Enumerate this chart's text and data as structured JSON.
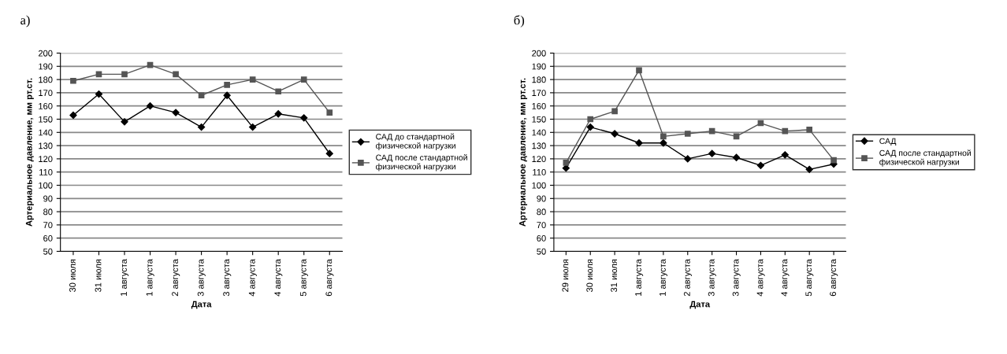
{
  "chart_data": [
    {
      "type": "line",
      "title": "а)",
      "xlabel": "Дата",
      "ylabel": "Артериальное давление, мм рт.ст.",
      "categories": [
        "30 июля",
        "31 июля",
        "1 августа",
        "1 августа",
        "2 августа",
        "3 августа",
        "3 августа",
        "4 августа",
        "4 августа",
        "5 августа",
        "6 августа"
      ],
      "series": [
        {
          "name": "САД до стандартной физической нагрузки",
          "color": "#000000",
          "marker": "diamond",
          "values": [
            153,
            169,
            148,
            160,
            155,
            144,
            168,
            144,
            154,
            151,
            124
          ]
        },
        {
          "name": "САД после стандартной физической нагрузки",
          "color": "#555555",
          "marker": "square",
          "values": [
            179,
            184,
            184,
            191,
            184,
            168,
            176,
            180,
            171,
            180,
            155
          ]
        }
      ],
      "ylim": [
        50,
        200
      ],
      "yticks": [
        50,
        60,
        70,
        80,
        90,
        100,
        110,
        120,
        130,
        140,
        150,
        160,
        170,
        180,
        190,
        200
      ],
      "grid": "y",
      "legend": "right",
      "line_style": "solid"
    },
    {
      "type": "line",
      "title": "б)",
      "xlabel": "Дата",
      "ylabel": "Артериальное давление, мм рт.ст.",
      "categories": [
        "29 июля",
        "30 июля",
        "31 июля",
        "1 августа",
        "1 августа",
        "2 августа",
        "3 августа",
        "3 августа",
        "4 августа",
        "4 августа",
        "5 августа",
        "6 августа"
      ],
      "series": [
        {
          "name": "САД",
          "color": "#000000",
          "marker": "diamond",
          "values": [
            113,
            144,
            139,
            132,
            132,
            120,
            124,
            121,
            115,
            123,
            112,
            116
          ]
        },
        {
          "name": "САД после стандартной физической нагрузки",
          "color": "#555555",
          "marker": "square",
          "values": [
            117,
            150,
            156,
            187,
            137,
            139,
            141,
            137,
            147,
            141,
            142,
            119
          ]
        }
      ],
      "ylim": [
        50,
        200
      ],
      "yticks": [
        50,
        60,
        70,
        80,
        90,
        100,
        110,
        120,
        130,
        140,
        150,
        160,
        170,
        180,
        190,
        200
      ],
      "grid": "y",
      "legend": "right",
      "line_style": "solid"
    }
  ]
}
